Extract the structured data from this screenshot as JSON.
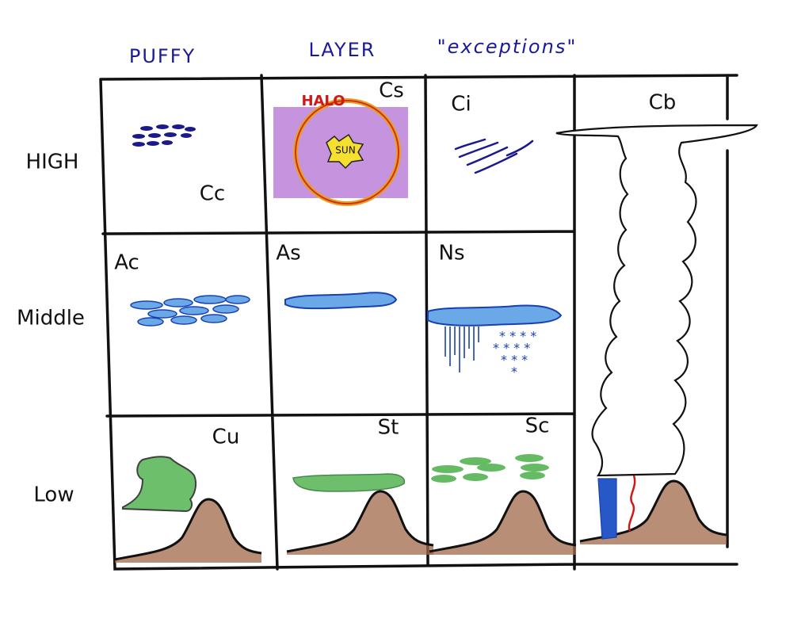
{
  "columns": [
    "PUFFY",
    "LAYER",
    "\"exceptions\""
  ],
  "rows": [
    "HIGH",
    "Middle",
    "Low"
  ],
  "cells": {
    "high": [
      "Cc",
      "Cs",
      "Ci"
    ],
    "middle": [
      "Ac",
      "As",
      "Ns"
    ],
    "low": [
      "Cu",
      "St",
      "Sc"
    ],
    "tall": "Cb"
  },
  "annotations": {
    "halo": "HALO",
    "sun": "SUN"
  }
}
